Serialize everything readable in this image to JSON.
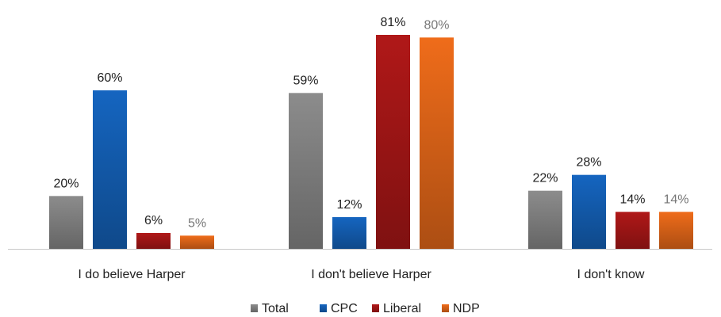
{
  "chart_data": {
    "type": "bar",
    "categories": [
      "I do believe Harper",
      "I don't believe Harper",
      "I don't know"
    ],
    "series": [
      {
        "name": "Total",
        "values": [
          20,
          59,
          22
        ],
        "color": "#8c8c8c",
        "label_color": "#222222"
      },
      {
        "name": "CPC",
        "values": [
          60,
          12,
          28
        ],
        "color": "#1565c0",
        "label_color": "#222222"
      },
      {
        "name": "Liberal",
        "values": [
          6,
          81,
          14
        ],
        "color": "#b01818",
        "label_color": "#222222"
      },
      {
        "name": "NDP",
        "values": [
          5,
          80,
          14
        ],
        "color": "#ef6c1a",
        "label_color": "#777777"
      }
    ],
    "value_suffix": "%",
    "ylim": [
      0,
      81
    ],
    "grid": false,
    "legend_position": "bottom"
  }
}
